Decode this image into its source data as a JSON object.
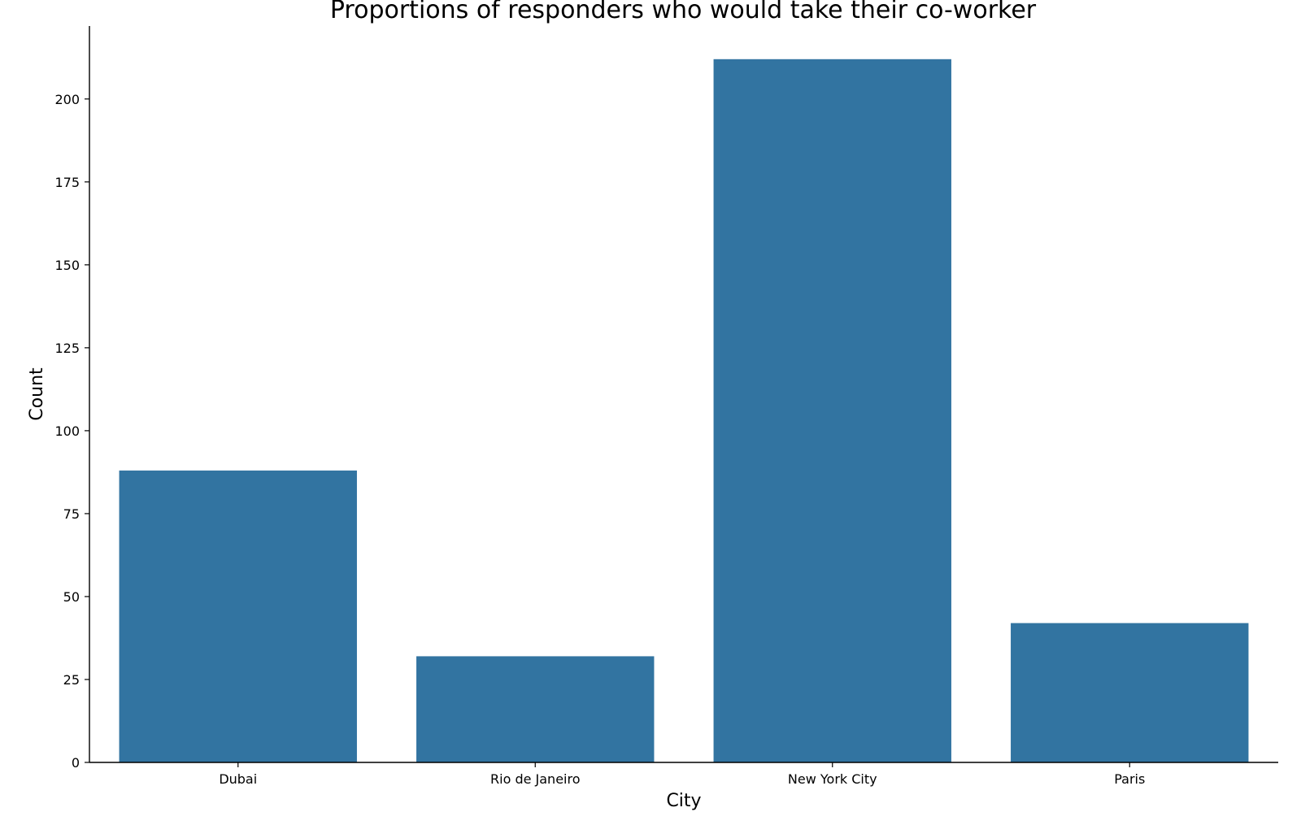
{
  "chart_data": {
    "type": "bar",
    "title": "Proportions of responders who would take their co-worker",
    "xlabel": "City",
    "ylabel": "Count",
    "categories": [
      "Dubai",
      "Rio de Janeiro",
      "New York City",
      "Paris"
    ],
    "values": [
      88,
      32,
      212,
      42
    ],
    "ylim": [
      0,
      222
    ],
    "yticks": [
      "0",
      "25",
      "50",
      "75",
      "100",
      "125",
      "150",
      "175",
      "200"
    ],
    "bar_color": "#3274a1",
    "grid": false,
    "legend": "none"
  }
}
